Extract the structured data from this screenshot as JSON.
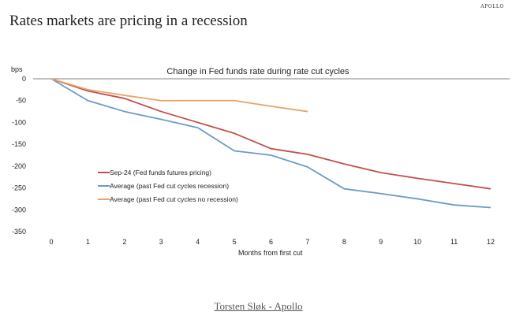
{
  "header": {
    "brand": "APOLLO",
    "title": "Rates markets are pricing in a recession"
  },
  "footer": {
    "credit": "Torsten Sløk - Apollo"
  },
  "chart_data": {
    "type": "line",
    "title": "Change in Fed funds rate during rate cut cycles",
    "xlabel": "Months from first cut",
    "ylabel": "bps",
    "x": [
      0,
      1,
      2,
      3,
      4,
      5,
      6,
      7,
      8,
      9,
      10,
      11,
      12
    ],
    "xlim": [
      0,
      12
    ],
    "ylim": [
      -350,
      0
    ],
    "yticks": [
      0,
      -50,
      -100,
      -150,
      -200,
      -250,
      -300,
      -350
    ],
    "xticks": [
      0,
      1,
      2,
      3,
      4,
      5,
      6,
      7,
      8,
      9,
      10,
      11,
      12
    ],
    "grid": false,
    "legend_position": "lower-left",
    "series": [
      {
        "name": "Sep-24 (Fed funds futures pricing)",
        "color": "#c0504d",
        "values": [
          0,
          -28,
          -45,
          -75,
          -100,
          -125,
          -160,
          -173,
          -195,
          -215,
          -228,
          -240,
          -252
        ]
      },
      {
        "name": "Average (past Fed cut cycles recession)",
        "color": "#6a9bc9",
        "values": [
          0,
          -50,
          -75,
          -93,
          -112,
          -165,
          -175,
          -202,
          -252,
          -263,
          -275,
          -289,
          -295
        ]
      },
      {
        "name": "Average (past Fed cut cycles no recession)",
        "color": "#e9a36a",
        "values": [
          0,
          -25,
          -38,
          -50,
          -50,
          -50,
          -63,
          -75
        ]
      }
    ]
  }
}
